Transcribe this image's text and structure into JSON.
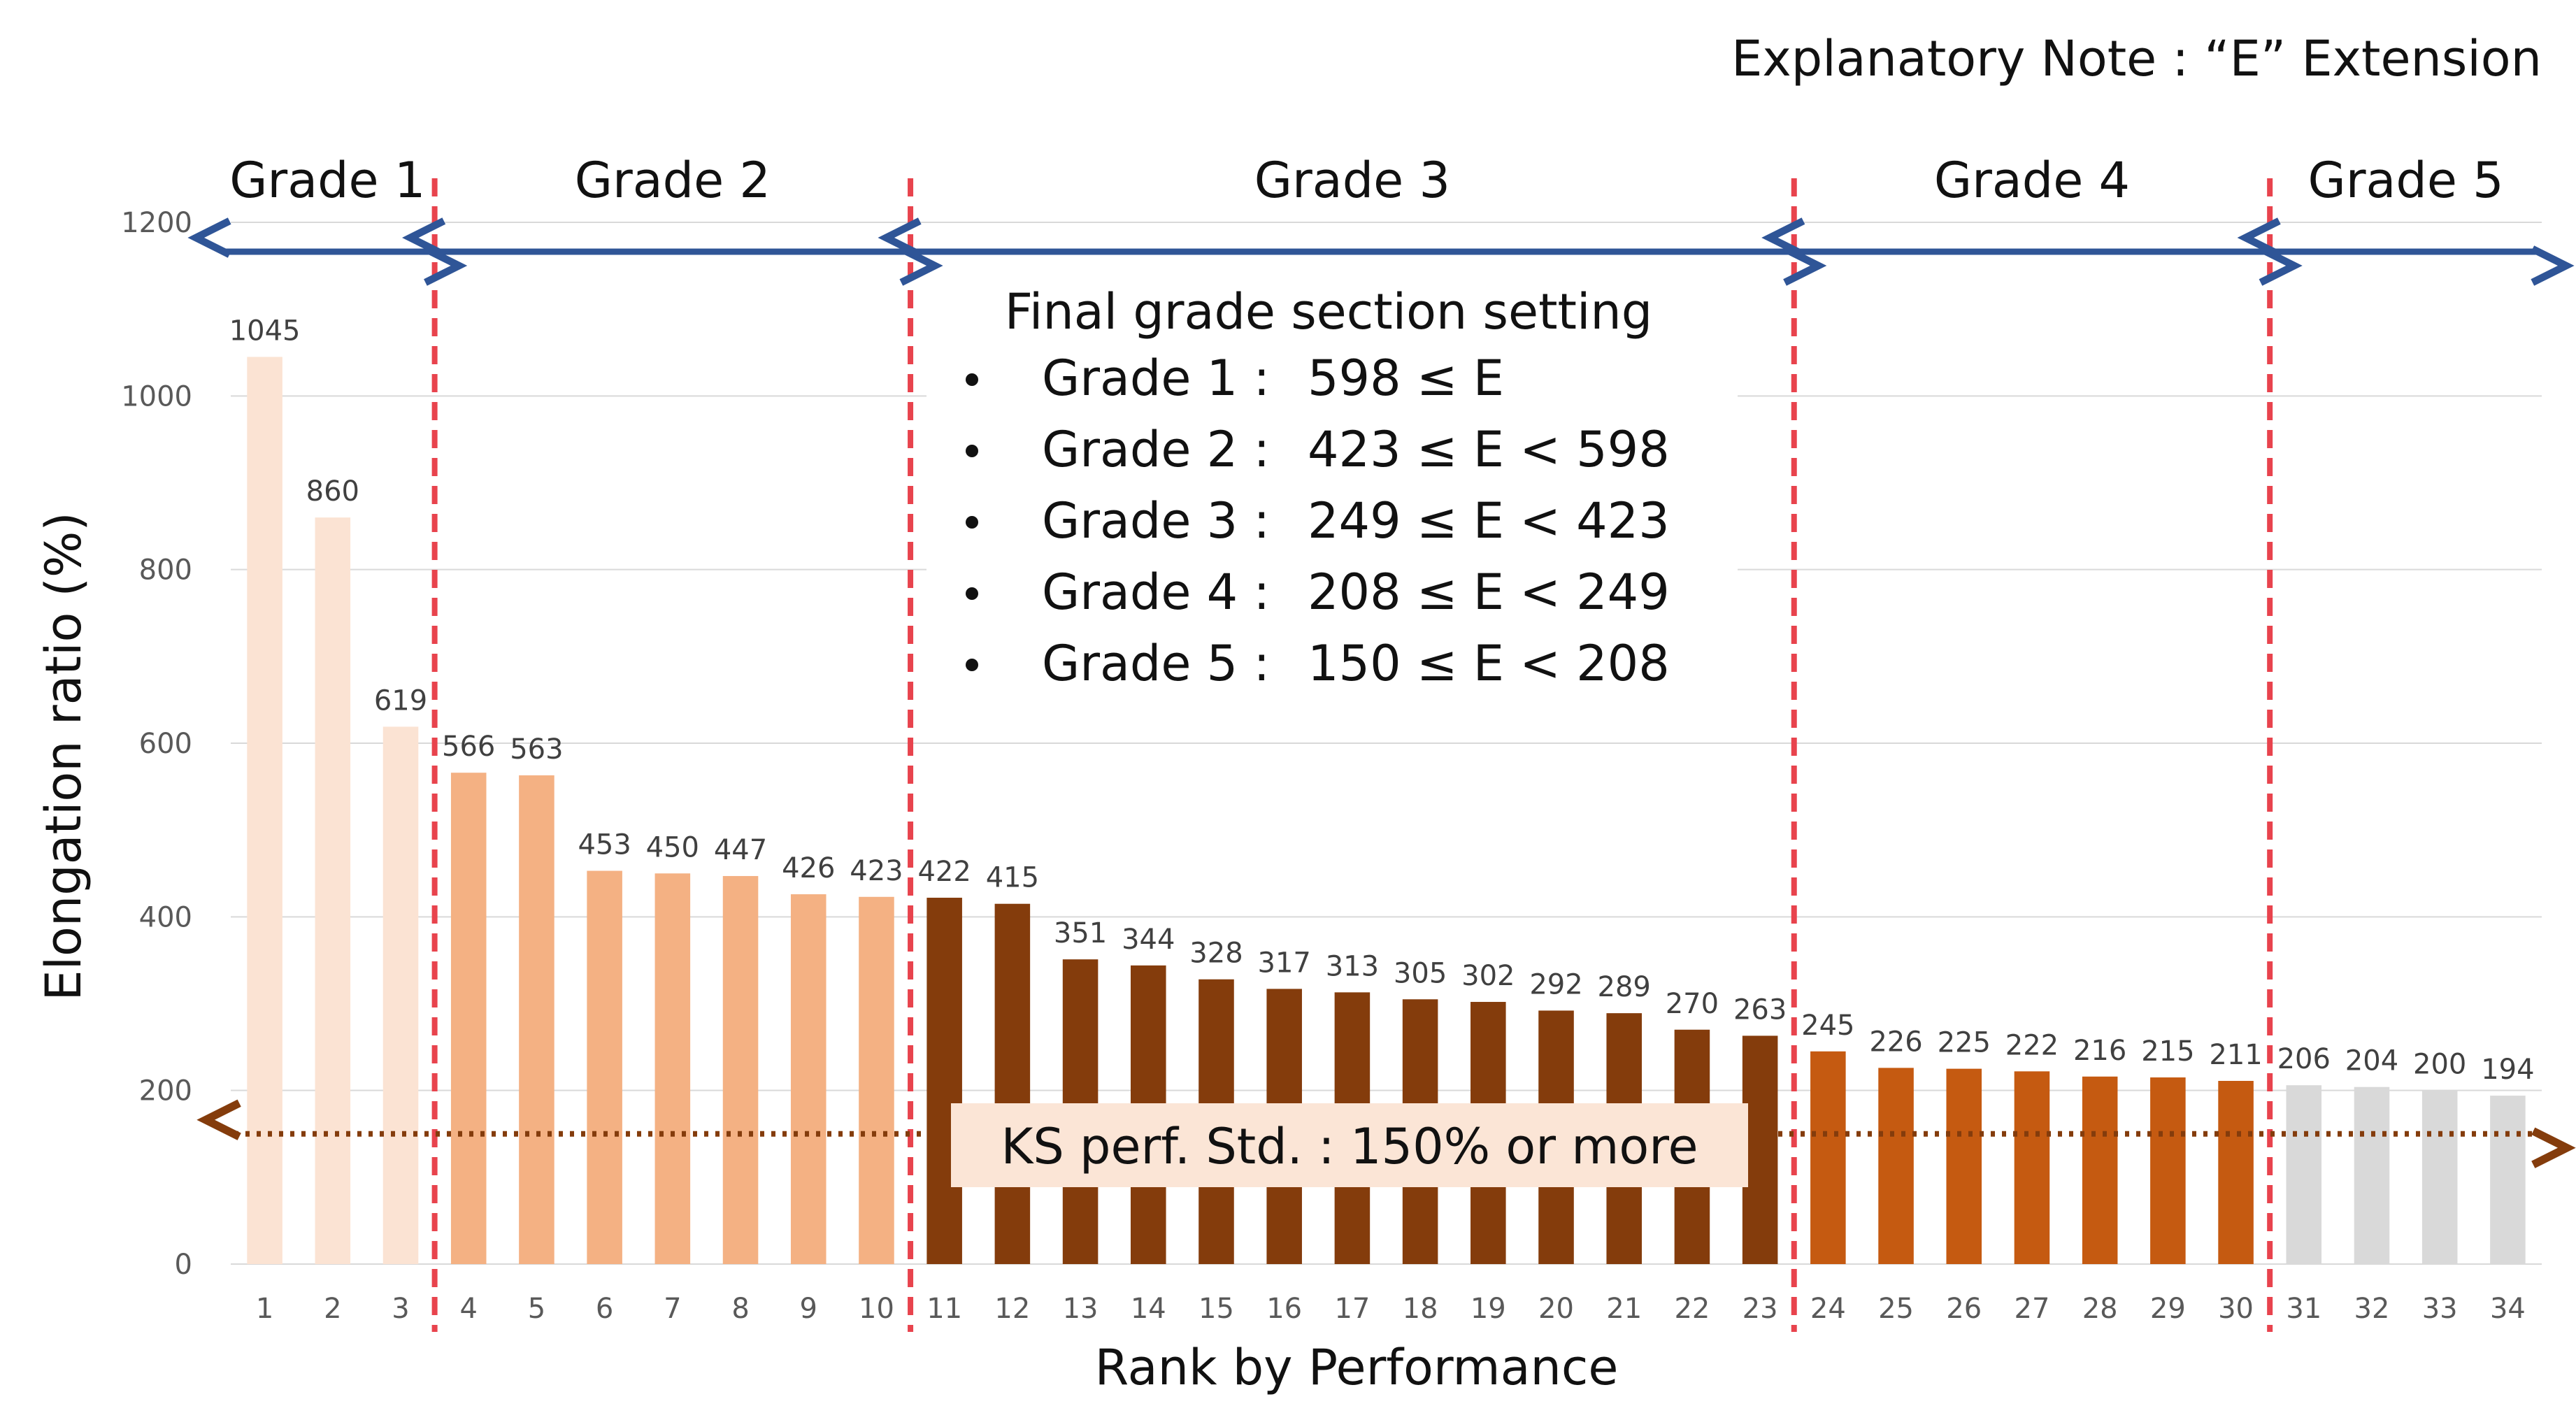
{
  "chart_data": {
    "type": "bar",
    "title": "Explanatory Note : “E” Extension",
    "xlabel": "Rank by Performance",
    "ylabel": "Elongation ratio (%)",
    "ylim": [
      0,
      1200
    ],
    "yticks": [
      0,
      200,
      400,
      600,
      800,
      1000,
      1200
    ],
    "grid": true,
    "categories": [
      "1",
      "2",
      "3",
      "4",
      "5",
      "6",
      "7",
      "8",
      "9",
      "10",
      "11",
      "12",
      "13",
      "14",
      "15",
      "16",
      "17",
      "18",
      "19",
      "20",
      "21",
      "22",
      "23",
      "24",
      "25",
      "26",
      "27",
      "28",
      "29",
      "30",
      "31",
      "32",
      "33",
      "34"
    ],
    "values": [
      1045,
      860,
      619,
      566,
      563,
      453,
      450,
      447,
      426,
      423,
      422,
      415,
      351,
      344,
      328,
      317,
      313,
      305,
      302,
      292,
      289,
      270,
      263,
      245,
      226,
      225,
      222,
      216,
      215,
      211,
      206,
      204,
      200,
      194
    ],
    "grades": [
      {
        "label": "Grade 1",
        "from_rank": 1,
        "to_rank": 3,
        "color": "#FBE3D3"
      },
      {
        "label": "Grade 2",
        "from_rank": 4,
        "to_rank": 10,
        "color": "#F4B183"
      },
      {
        "label": "Grade 3",
        "from_rank": 11,
        "to_rank": 23,
        "color": "#843C0C"
      },
      {
        "label": "Grade 4",
        "from_rank": 24,
        "to_rank": 30,
        "color": "#C55A11"
      },
      {
        "label": "Grade 5",
        "from_rank": 31,
        "to_rank": 34,
        "color": "#D9D9D9"
      }
    ],
    "settings_title": "Final grade section setting",
    "settings": [
      {
        "grade": "Grade 1 :",
        "range": "598 ≤ E"
      },
      {
        "grade": "Grade 2 :",
        "range": "423 ≤ E < 598"
      },
      {
        "grade": "Grade 3 :",
        "range": "249 ≤ E < 423"
      },
      {
        "grade": "Grade 4 :",
        "range": "208 ≤ E < 249"
      },
      {
        "grade": "Grade 5 :",
        "range": "150 ≤ E < 208"
      }
    ],
    "standard": {
      "label": "KS perf. Std. : 150% or more",
      "value": 150
    },
    "colors": {
      "boundary": "#E8434D",
      "arrow": "#2F5597",
      "std_line": "#843C0C",
      "std_box": "#FBE5D6",
      "grid": "#D9D9D9"
    }
  }
}
